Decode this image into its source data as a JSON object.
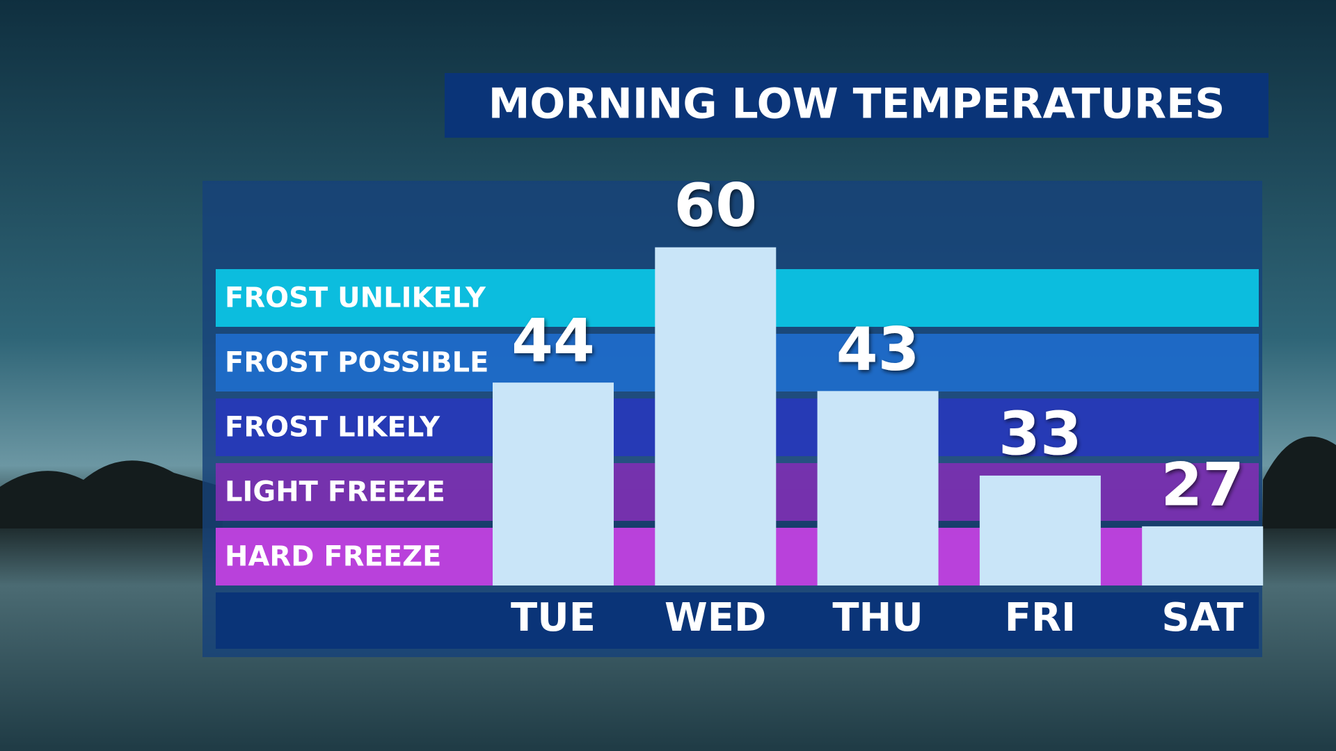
{
  "chart_data": {
    "type": "bar",
    "title": "MORNING LOW TEMPERATURES",
    "categories": [
      "TUE",
      "WED",
      "THU",
      "FRI",
      "SAT"
    ],
    "values": [
      44,
      60,
      43,
      33,
      27
    ],
    "color": "#c9e5f8",
    "ylim": [
      20,
      64
    ],
    "bands": [
      {
        "label": "FROST UNLIKELY",
        "color": "#0cc4e4"
      },
      {
        "label": "FROST POSSIBLE",
        "color": "#1f6bc9"
      },
      {
        "label": "FROST LIKELY",
        "color": "#2739b8"
      },
      {
        "label": "LIGHT FREEZE",
        "color": "#7a30b0"
      },
      {
        "label": "HARD FREEZE",
        "color": "#c241e0"
      }
    ]
  }
}
